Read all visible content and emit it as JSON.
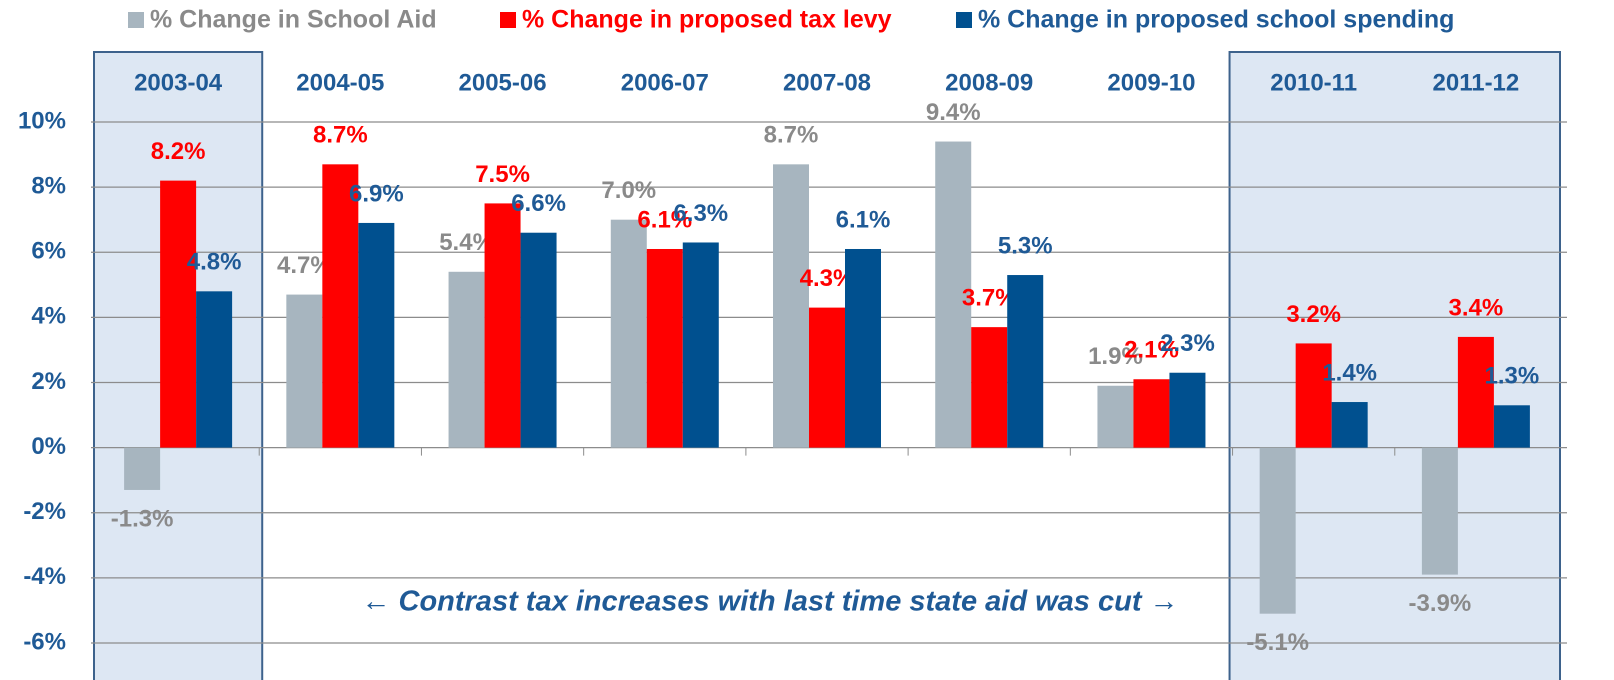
{
  "chart_data": {
    "type": "bar",
    "categories": [
      "2003-04",
      "2004-05",
      "2005-06",
      "2006-07",
      "2007-08",
      "2008-09",
      "2009-10",
      "2010-11",
      "2011-12"
    ],
    "series": [
      {
        "name": "% Change in School Aid",
        "color": "#a7b5bf",
        "label_color": "#8a8a8a",
        "values": [
          -1.3,
          4.7,
          5.4,
          7.0,
          8.7,
          9.4,
          1.9,
          -5.1,
          -3.9
        ],
        "value_labels": [
          "-1.3%",
          "4.7%",
          "5.4%",
          "7.0%",
          "8.7%",
          "9.4%",
          "1.9%",
          "-5.1%",
          "-3.9%"
        ]
      },
      {
        "name": "% Change in proposed tax levy",
        "color": "#ff0000",
        "label_color": "#ff0000",
        "values": [
          8.2,
          8.7,
          7.5,
          6.1,
          4.3,
          3.7,
          2.1,
          3.2,
          3.4
        ],
        "value_labels": [
          "8.2%",
          "8.7%",
          "7.5%",
          "6.1%",
          "4.3%",
          "3.7%",
          "2.1%",
          "3.2%",
          "3.4%"
        ]
      },
      {
        "name": "% Change in proposed school spending",
        "color": "#00508f",
        "label_color": "#1f5a96",
        "values": [
          4.8,
          6.9,
          6.6,
          6.3,
          6.1,
          5.3,
          2.3,
          1.4,
          1.3
        ],
        "value_labels": [
          "4.8%",
          "6.9%",
          "6.6%",
          "6.3%",
          "6.1%",
          "5.3%",
          "2.3%",
          "1.4%",
          "1.3%"
        ]
      }
    ],
    "ylim": [
      -6,
      10
    ],
    "yticks": [
      {
        "value": -6,
        "label": "-6%"
      },
      {
        "value": -4,
        "label": "-4%"
      },
      {
        "value": -2,
        "label": "-2%"
      },
      {
        "value": 0,
        "label": "0%"
      },
      {
        "value": 2,
        "label": "2%"
      },
      {
        "value": 4,
        "label": "4%"
      },
      {
        "value": 6,
        "label": "6%"
      },
      {
        "value": 8,
        "label": "8%"
      },
      {
        "value": 10,
        "label": "10%"
      }
    ],
    "grid": true,
    "highlight": [
      0,
      7,
      8
    ],
    "annotation": "← Contrast tax increases with last time state aid was cut →"
  }
}
